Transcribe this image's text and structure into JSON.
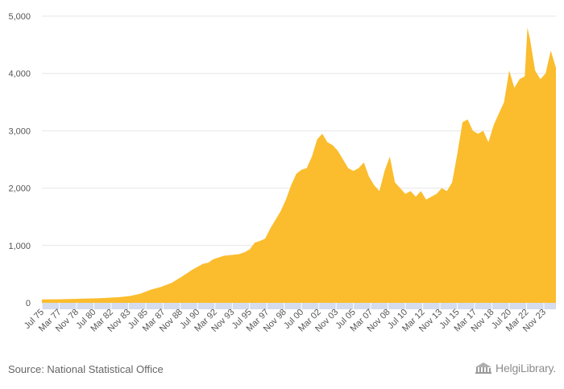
{
  "chart_data": {
    "type": "area",
    "title": "",
    "xlabel": "",
    "ylabel": "",
    "ylim": [
      0,
      5000
    ],
    "yticks": [
      0,
      1000,
      2000,
      3000,
      4000,
      5000
    ],
    "ytick_labels": [
      "0",
      "1,000",
      "2,000",
      "3,000",
      "4,000",
      "5,000"
    ],
    "xtick_labels": [
      "Jul 75",
      "Mar 77",
      "Nov 78",
      "Jul 80",
      "Mar 82",
      "Nov 83",
      "Jul 85",
      "Mar 87",
      "Nov 88",
      "Jul 90",
      "Mar 92",
      "Nov 93",
      "Jul 95",
      "Mar 97",
      "Nov 98",
      "Jul 00",
      "Mar 02",
      "Nov 03",
      "Jul 05",
      "Mar 07",
      "Nov 08",
      "Jul 10",
      "Mar 12",
      "Nov 13",
      "Jul 15",
      "Mar 17",
      "Nov 18",
      "Jul 20",
      "Mar 22",
      "Nov 23"
    ],
    "grid": true,
    "color": "#fbbd2e",
    "x": [
      "Jul 75",
      "Jan 77",
      "Jan 79",
      "Jan 81",
      "Jan 83",
      "Jan 84",
      "Jan 85",
      "Jan 86",
      "Jan 87",
      "Jan 88",
      "Jan 89",
      "Jan 90",
      "Jan 91",
      "Jul 91",
      "Jan 92",
      "Jan 93",
      "Jan 94",
      "Jul 94",
      "Jan 95",
      "Jul 95",
      "Jan 96",
      "Jul 96",
      "Jan 97",
      "Jul 97",
      "Jan 98",
      "Jul 98",
      "Jan 99",
      "Jul 99",
      "Jan 00",
      "Jul 00",
      "Jan 01",
      "Jul 01",
      "Jan 02",
      "Jul 02",
      "Jan 03",
      "Jul 03",
      "Jan 04",
      "Jul 04",
      "Jan 05",
      "Jul 05",
      "Jan 06",
      "Jul 06",
      "Jan 07",
      "Jul 07",
      "Jan 08",
      "Jul 08",
      "Jan 09",
      "Jul 09",
      "Jan 10",
      "Jul 10",
      "Jan 11",
      "Jul 11",
      "Jan 12",
      "Jul 12",
      "Jan 13",
      "Jul 13",
      "Jan 14",
      "Jul 14",
      "Jan 15",
      "Jul 15",
      "Jan 16",
      "Jul 16",
      "Jan 17",
      "Jul 17",
      "Jan 18",
      "Jul 18",
      "Jan 19",
      "Jul 19",
      "Jan 20",
      "Jul 20",
      "Jan 21",
      "Jul 21",
      "Jan 22",
      "Apr 22",
      "Jul 22",
      "Jan 23",
      "Jul 23",
      "Jan 24",
      "Jul 24",
      "Jan 25"
    ],
    "values": [
      60,
      62,
      70,
      80,
      100,
      120,
      160,
      230,
      280,
      350,
      460,
      580,
      680,
      700,
      760,
      820,
      840,
      850,
      880,
      930,
      1050,
      1080,
      1120,
      1300,
      1450,
      1600,
      1800,
      2050,
      2250,
      2320,
      2350,
      2550,
      2850,
      2950,
      2800,
      2750,
      2650,
      2500,
      2350,
      2300,
      2350,
      2450,
      2200,
      2050,
      1950,
      2300,
      2550,
      2100,
      2000,
      1900,
      1950,
      1850,
      1950,
      1800,
      1850,
      1900,
      2000,
      1950,
      2100,
      2600,
      3150,
      3200,
      3000,
      2950,
      3000,
      2800,
      3100,
      3300,
      3500,
      4050,
      3750,
      3900,
      3950,
      4800,
      4600,
      4050,
      3900,
      4000,
      4400,
      4100
    ]
  },
  "source_text": "Source: National Statistical Office",
  "logo_text": "HelgiLibrary."
}
